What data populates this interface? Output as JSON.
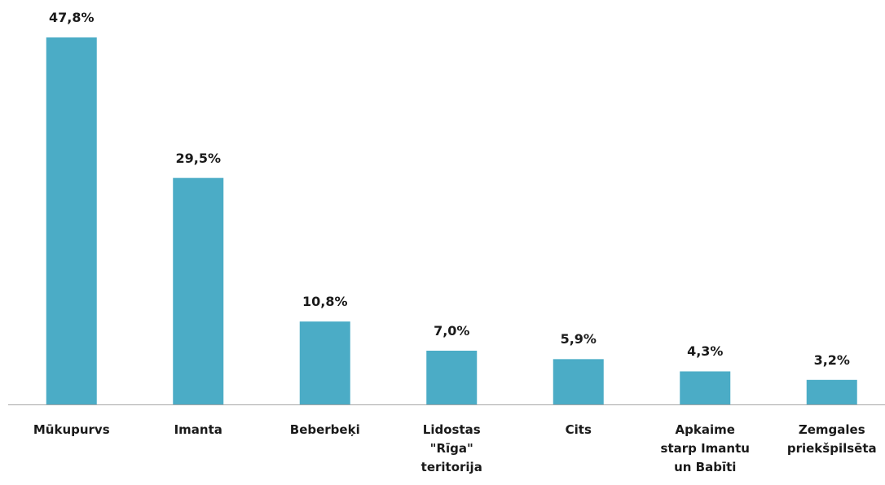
{
  "chart_data": {
    "type": "bar",
    "categories": [
      "Mūkupurvs",
      "Imanta",
      "Beberbeķi",
      "Lidostas \"Rīga\" teritorija",
      "Cits",
      "Apkaime starp Imantu un Babīti",
      "Zemgales priekšpilsēta"
    ],
    "values": [
      47.8,
      29.5,
      10.8,
      7.0,
      5.9,
      4.3,
      3.2
    ],
    "value_labels": [
      "47,8%",
      "29,5%",
      "10,8%",
      "7,0%",
      "5,9%",
      "4,3%",
      "3,2%"
    ],
    "color": "#4bacc6"
  }
}
